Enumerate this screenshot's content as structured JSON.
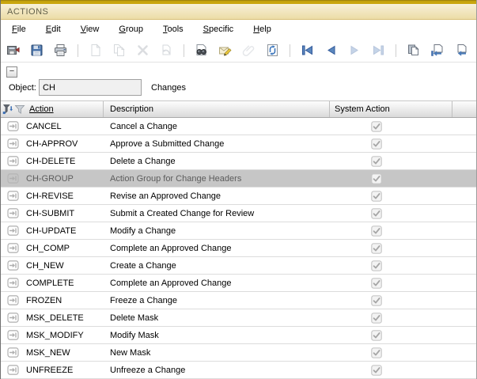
{
  "window": {
    "title": "ACTIONS"
  },
  "menu": {
    "items": [
      {
        "label": "File"
      },
      {
        "label": "Edit"
      },
      {
        "label": "View"
      },
      {
        "label": "Group"
      },
      {
        "label": "Tools"
      },
      {
        "label": "Specific"
      },
      {
        "label": "Help"
      }
    ]
  },
  "toolbar": {
    "groups": [
      [
        {
          "icon": "export",
          "enabled": true
        },
        {
          "icon": "save",
          "enabled": true
        },
        {
          "icon": "print",
          "enabled": true
        }
      ],
      [
        {
          "icon": "new-document",
          "enabled": false
        },
        {
          "icon": "copy",
          "enabled": false
        },
        {
          "icon": "delete",
          "enabled": false
        },
        {
          "icon": "undo",
          "enabled": false
        }
      ],
      [
        {
          "icon": "find",
          "enabled": true
        },
        {
          "icon": "edit-note",
          "enabled": true
        },
        {
          "icon": "attachment",
          "enabled": false
        },
        {
          "icon": "refresh",
          "enabled": true
        }
      ],
      [
        {
          "icon": "first-record",
          "enabled": true
        },
        {
          "icon": "previous-record",
          "enabled": true
        },
        {
          "icon": "next-record",
          "enabled": false
        },
        {
          "icon": "last-record",
          "enabled": false
        }
      ],
      [
        {
          "icon": "copy-record",
          "enabled": true
        },
        {
          "icon": "goto-first-block",
          "enabled": true
        },
        {
          "icon": "goto-previous-block",
          "enabled": true
        },
        {
          "icon": "goto-next-block",
          "enabled": true
        },
        {
          "icon": "goto-last-block",
          "enabled": true
        }
      ],
      [
        {
          "icon": "grid-view",
          "enabled": true
        }
      ],
      [
        {
          "icon": "exit-user",
          "enabled": true
        }
      ]
    ]
  },
  "panel": {
    "collapse_button": "−",
    "object_label": "Object:",
    "object_value": "CH",
    "object_description": "Changes"
  },
  "table": {
    "columns": [
      {
        "label": "Action",
        "sorted": true
      },
      {
        "label": "Description",
        "sorted": false
      },
      {
        "label": "System Action",
        "sorted": false
      },
      {
        "label": "",
        "sorted": false
      }
    ],
    "rows": [
      {
        "action": "CANCEL",
        "description": "Cancel a Change",
        "system_action": true,
        "selected": false
      },
      {
        "action": "CH-APPROV",
        "description": "Approve a Submitted Change",
        "system_action": true,
        "selected": false
      },
      {
        "action": "CH-DELETE",
        "description": "Delete a Change",
        "system_action": true,
        "selected": false
      },
      {
        "action": "CH-GROUP",
        "description": "Action Group for Change Headers",
        "system_action": true,
        "selected": true
      },
      {
        "action": "CH-REVISE",
        "description": "Revise an Approved Change",
        "system_action": true,
        "selected": false
      },
      {
        "action": "CH-SUBMIT",
        "description": "Submit a Created Change for Review",
        "system_action": true,
        "selected": false
      },
      {
        "action": "CH-UPDATE",
        "description": "Modify a Change",
        "system_action": true,
        "selected": false
      },
      {
        "action": "CH_COMP",
        "description": "Complete an Approved Change",
        "system_action": true,
        "selected": false
      },
      {
        "action": "CH_NEW",
        "description": "Create a Change",
        "system_action": true,
        "selected": false
      },
      {
        "action": "COMPLETE",
        "description": "Complete an Approved Change",
        "system_action": true,
        "selected": false
      },
      {
        "action": "FROZEN",
        "description": "Freeze a Change",
        "system_action": true,
        "selected": false
      },
      {
        "action": "MSK_DELETE",
        "description": "Delete Mask",
        "system_action": true,
        "selected": false
      },
      {
        "action": "MSK_MODIFY",
        "description": "Modify Mask",
        "system_action": true,
        "selected": false
      },
      {
        "action": "MSK_NEW",
        "description": "New Mask",
        "system_action": true,
        "selected": false
      },
      {
        "action": "UNFREEZE",
        "description": "Unfreeze a Change",
        "system_action": true,
        "selected": false
      }
    ]
  },
  "colors": {
    "titlebar_strip": "#c9a60e",
    "titlebar_gradient_top": "#faf6e6",
    "titlebar_gradient_bottom": "#ecdca6",
    "selected_row": "#c6c6c6",
    "accent_blue": "#4a7ab8",
    "header_gradient_bottom": "#dadada"
  }
}
